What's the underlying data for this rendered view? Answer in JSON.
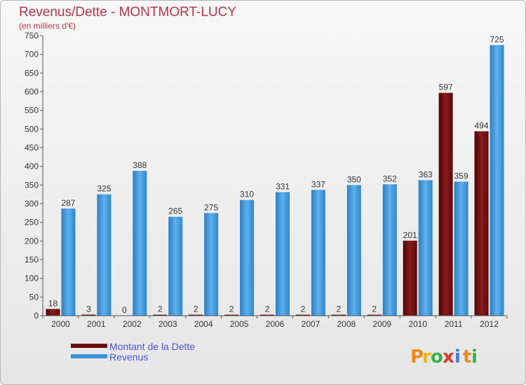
{
  "title": "Revenus/Dette - MONTMORT-LUCY",
  "subtitle": "(en milliers d'€)",
  "brand": {
    "letters": [
      "P",
      "r",
      "o",
      "x",
      "i",
      "t",
      "i"
    ]
  },
  "colors": {
    "dette": "#6b0a0a",
    "revenus": "#3a95dd",
    "title": "#b4354a",
    "legend_text": "#4a55d6",
    "brand_letters": [
      "#f08a1c",
      "#f0b41c",
      "#3ab04a",
      "#d63a2a",
      "#3a7fd6",
      "#f08a1c",
      "#3ab04a"
    ]
  },
  "chart_data": {
    "type": "bar",
    "categories": [
      "2000",
      "2001",
      "2002",
      "2003",
      "2004",
      "2005",
      "2006",
      "2007",
      "2008",
      "2009",
      "2010",
      "2011",
      "2012"
    ],
    "series": [
      {
        "name": "Montant de la Dette",
        "values": [
          18,
          3,
          0,
          2,
          2,
          2,
          2,
          2,
          2,
          2,
          201,
          597,
          494
        ]
      },
      {
        "name": "Revenus",
        "values": [
          287,
          325,
          388,
          265,
          275,
          310,
          331,
          337,
          350,
          352,
          363,
          359,
          725
        ]
      }
    ],
    "ylim": [
      0,
      750
    ],
    "yticks": [
      0,
      50,
      100,
      150,
      200,
      250,
      300,
      350,
      400,
      450,
      500,
      550,
      600,
      650,
      700,
      750
    ],
    "grid": false,
    "legend": "bottom-left"
  }
}
